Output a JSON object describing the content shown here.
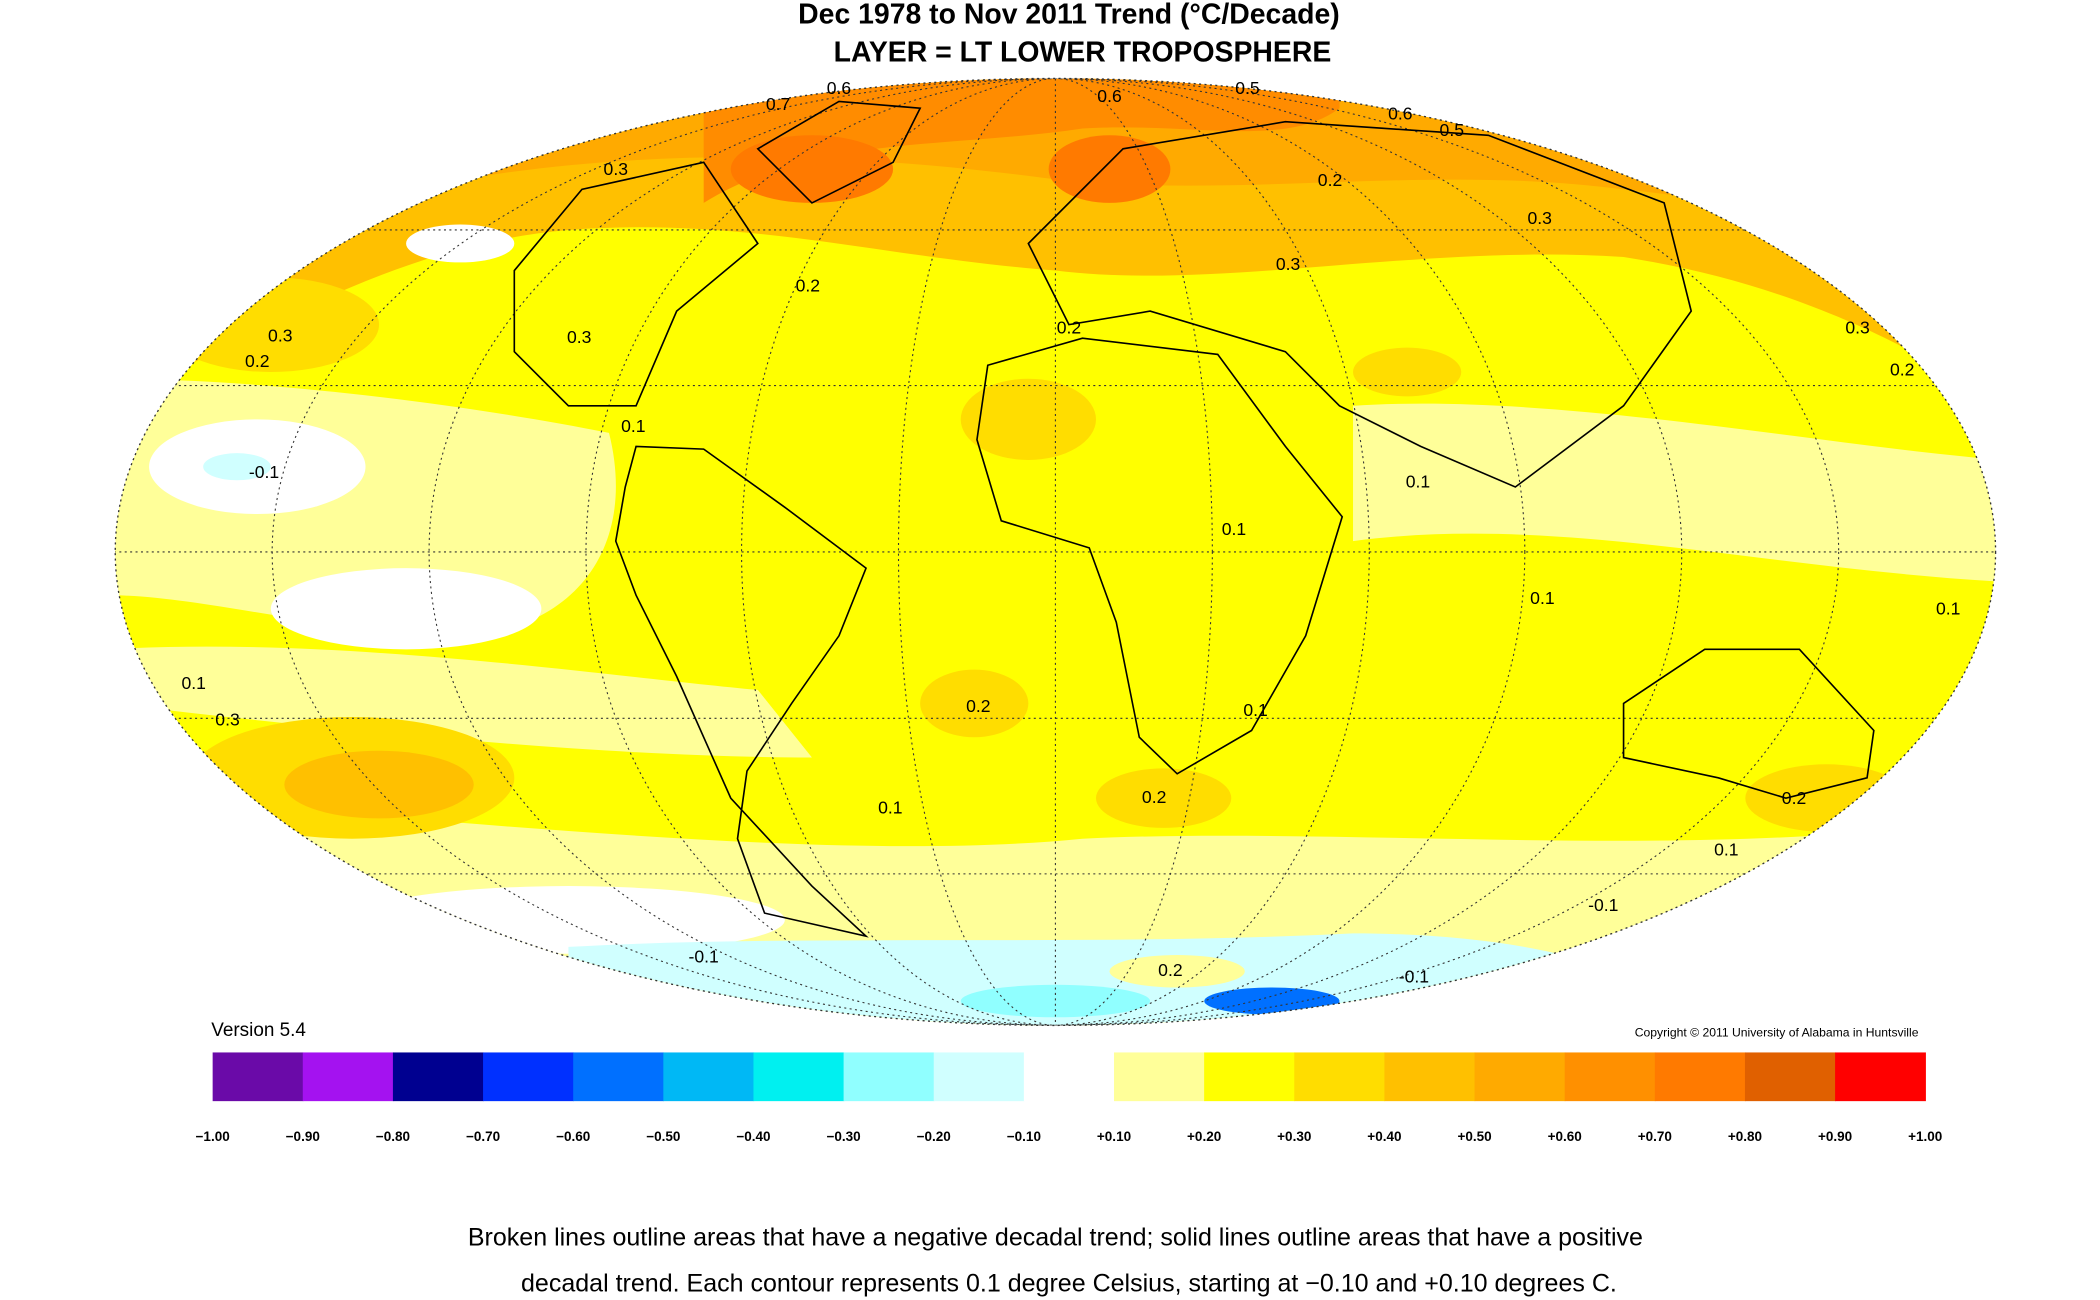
{
  "title": "Dec 1978 to Nov 2011 Trend (°C/Decade)",
  "subtitle": "LAYER = LT LOWER TROPOSPHERE",
  "version": "Version 5.4",
  "copyright": "Copyright © 2011 University of Alabama in Huntsville",
  "map": {
    "contour_labels": [
      0.6,
      0.7,
      0.6,
      0.5,
      0.6,
      0.5,
      0.3,
      0.2,
      0.3,
      0.2,
      0.3,
      0.3,
      0.2,
      0.3,
      0.2,
      0.3,
      0.2,
      0.1,
      -0.1,
      0.1,
      0.1,
      0.1,
      0.1,
      0.1,
      0.3,
      0.2,
      0.1,
      0.2,
      0.1,
      0.2,
      0.1,
      -0.1,
      -0.1,
      0.2,
      -0.1
    ]
  },
  "colorbar": {
    "ticks": [
      {
        "value": -1,
        "label": "−1.00"
      },
      {
        "value": -0.9,
        "label": "−0.90"
      },
      {
        "value": -0.8,
        "label": "−0.80"
      },
      {
        "value": -0.7,
        "label": "−0.70"
      },
      {
        "value": -0.6,
        "label": "−0.60"
      },
      {
        "value": -0.5,
        "label": "−0.50"
      },
      {
        "value": -0.4,
        "label": "−0.40"
      },
      {
        "value": -0.3,
        "label": "−0.30"
      },
      {
        "value": -0.2,
        "label": "−0.20"
      },
      {
        "value": -0.1,
        "label": "−0.10"
      },
      {
        "value": 0.1,
        "label": "+0.10"
      },
      {
        "value": 0.2,
        "label": "+0.20"
      },
      {
        "value": 0.3,
        "label": "+0.30"
      },
      {
        "value": 0.4,
        "label": "+0.40"
      },
      {
        "value": 0.5,
        "label": "+0.50"
      },
      {
        "value": 0.6,
        "label": "+0.60"
      },
      {
        "value": 0.7,
        "label": "+0.70"
      },
      {
        "value": 0.8,
        "label": "+0.80"
      },
      {
        "value": 0.9,
        "label": "+0.90"
      },
      {
        "value": 1,
        "label": "+1.00"
      }
    ],
    "colors": [
      "#6a0aa8",
      "#a412f0",
      "#000090",
      "#0030ff",
      "#0070ff",
      "#00b8f5",
      "#00f0f0",
      "#90ffff",
      "#d0ffff",
      "#ffffff",
      "#ffff99",
      "#ffff00",
      "#ffdd00",
      "#ffc000",
      "#ffaa00",
      "#ff9000",
      "#ff7a00",
      "#e06000",
      "#ff0000"
    ]
  },
  "caption": [
    "Broken lines outline areas that have a negative decadal trend; solid lines outline areas that have a positive",
    "decadal trend. Each contour represents 0.1 degree Celsius, starting at −0.10 and +0.10 degrees C."
  ]
}
